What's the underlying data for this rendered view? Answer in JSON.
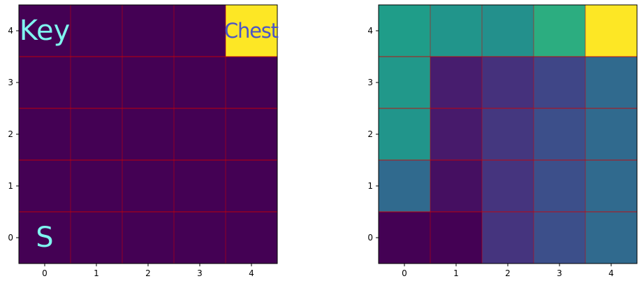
{
  "chart_data": [
    {
      "type": "heatmap",
      "title": "",
      "xlabel": "",
      "ylabel": "",
      "x_ticks": [
        "0",
        "1",
        "2",
        "3",
        "4"
      ],
      "y_ticks": [
        "0",
        "1",
        "2",
        "3",
        "4"
      ],
      "xlim": [
        -0.5,
        4.5
      ],
      "ylim": [
        -0.5,
        4.5
      ],
      "colormap": "viridis",
      "grid_color": "#d00000",
      "rows_top_to_bottom": [
        [
          0,
          0,
          0,
          0,
          1
        ],
        [
          0,
          0,
          0,
          0,
          0
        ],
        [
          0,
          0,
          0,
          0,
          0
        ],
        [
          0,
          0,
          0,
          0,
          0
        ],
        [
          0,
          0,
          0,
          0,
          0
        ]
      ],
      "annotations": [
        {
          "text": "Key",
          "x": 0,
          "y": 4,
          "color": "#7ff5f0"
        },
        {
          "text": "Chest",
          "x": 4,
          "y": 4,
          "color": "#4b55c6"
        },
        {
          "text": "S",
          "x": 0,
          "y": 0,
          "color": "#7ff5f0"
        }
      ]
    },
    {
      "type": "heatmap",
      "title": "",
      "xlabel": "",
      "ylabel": "",
      "x_ticks": [
        "0",
        "1",
        "2",
        "3",
        "4"
      ],
      "y_ticks": [
        "0",
        "1",
        "2",
        "3",
        "4"
      ],
      "xlim": [
        -0.5,
        4.5
      ],
      "ylim": [
        -0.5,
        4.5
      ],
      "colormap": "viridis",
      "grid_color": "#d00000",
      "rows_top_to_bottom": [
        [
          0.55,
          0.52,
          0.5,
          0.62,
          1.0
        ],
        [
          0.53,
          0.08,
          0.14,
          0.21,
          0.34
        ],
        [
          0.52,
          0.07,
          0.16,
          0.24,
          0.34
        ],
        [
          0.34,
          0.04,
          0.15,
          0.24,
          0.34
        ],
        [
          0.0,
          0.0,
          0.15,
          0.24,
          0.34
        ]
      ],
      "annotations": []
    }
  ]
}
